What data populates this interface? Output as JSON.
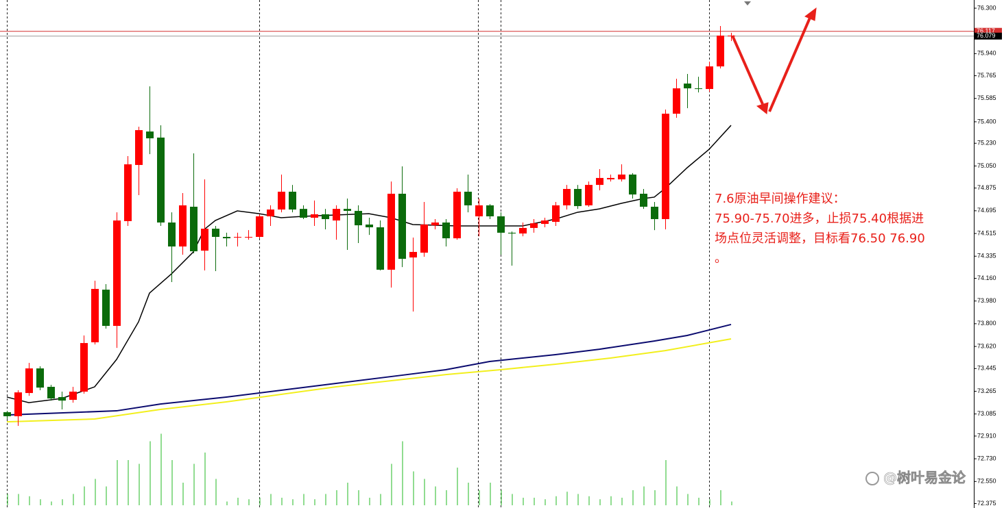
{
  "chart_data": {
    "type": "candlestick",
    "up_color": "#ff0000",
    "down_color": "#0b6b0b",
    "ylim": [
      72.34,
      76.365
    ],
    "yticks": [
      {
        "value": 76.3,
        "label": "76.300"
      },
      {
        "value": 75.94,
        "label": "75.940"
      },
      75.765,
      75.585,
      {
        "value": 75.4,
        "label": "75.400"
      },
      {
        "value": 75.23,
        "label": "75.230"
      },
      {
        "value": 75.05,
        "label": "75.050"
      },
      74.875,
      74.695,
      74.515,
      74.335,
      {
        "value": 74.16,
        "label": "74.160"
      },
      {
        "value": 73.98,
        "label": "73.980"
      },
      {
        "value": 73.8,
        "label": "73.800"
      },
      {
        "value": 73.62,
        "label": "73.620"
      },
      73.445,
      73.265,
      73.085,
      {
        "value": 72.91,
        "label": "72.910"
      },
      {
        "value": 72.73,
        "label": "72.730"
      },
      {
        "value": 72.55,
        "label": "72.550"
      },
      72.375
    ],
    "grid": false,
    "open": [
      73.099,
      73.067,
      73.251,
      73.446,
      73.3,
      73.219,
      73.197,
      73.262,
      73.653,
      74.07,
      73.783,
      74.613,
      75.058,
      75.323,
      75.275,
      74.602,
      74.412,
      74.727,
      74.379,
      74.553,
      74.488,
      74.483,
      74.483,
      74.488,
      74.651,
      74.705,
      74.846,
      74.71,
      74.64,
      74.667,
      74.618,
      74.71,
      74.694,
      74.586,
      74.564,
      74.228,
      74.83,
      74.325,
      74.363,
      74.58,
      74.602,
      74.477,
      74.846,
      74.651,
      74.738,
      74.651,
      74.521,
      74.515,
      74.559,
      74.591,
      74.607,
      74.738,
      74.868,
      74.738,
      74.9,
      74.944,
      74.944,
      74.982,
      74.83,
      74.727,
      74.629,
      75.464,
      75.703,
      75.665,
      75.66,
      75.839,
      76.079
    ],
    "high": [
      73.11,
      73.273,
      73.49,
      73.463,
      73.316,
      73.262,
      73.3,
      73.707,
      74.141,
      74.114,
      74.683,
      75.128,
      75.361,
      75.681,
      75.372,
      74.683,
      74.835,
      75.15,
      74.944,
      74.575,
      74.521,
      74.521,
      74.542,
      74.667,
      74.738,
      74.982,
      74.9,
      74.738,
      74.776,
      74.71,
      74.738,
      74.792,
      74.738,
      74.64,
      74.618,
      74.927,
      75.047,
      74.483,
      74.765,
      74.629,
      74.629,
      74.873,
      74.982,
      74.792,
      74.748,
      74.683,
      74.531,
      74.602,
      74.629,
      74.64,
      74.765,
      74.9,
      74.9,
      74.927,
      75.025,
      74.982,
      75.063,
      74.993,
      74.868,
      74.765,
      75.497,
      75.741,
      75.779,
      75.757,
      75.877,
      76.159,
      76.105
    ],
    "low": [
      73.045,
      72.991,
      73.229,
      73.273,
      73.191,
      73.121,
      73.175,
      73.246,
      73.636,
      73.761,
      73.609,
      74.575,
      74.819,
      75.144,
      74.575,
      74.13,
      74.347,
      74.358,
      74.222,
      74.217,
      74.412,
      74.412,
      74.466,
      74.477,
      74.575,
      74.683,
      74.683,
      74.629,
      74.575,
      74.548,
      74.466,
      74.385,
      74.439,
      74.504,
      74.222,
      74.087,
      74.249,
      73.897,
      74.331,
      74.548,
      74.412,
      74.466,
      74.683,
      74.493,
      74.629,
      74.347,
      74.26,
      74.493,
      74.521,
      74.564,
      74.575,
      74.705,
      74.71,
      74.727,
      74.857,
      74.927,
      74.927,
      74.792,
      74.71,
      74.542,
      74.548,
      75.432,
      75.508,
      75.633,
      75.638,
      75.823,
      76.04
    ],
    "close": [
      73.067,
      73.256,
      73.446,
      73.294,
      73.208,
      73.191,
      73.262,
      73.647,
      74.076,
      73.783,
      74.618,
      75.063,
      75.334,
      75.269,
      74.602,
      74.412,
      74.738,
      74.374,
      74.553,
      74.488,
      74.477,
      74.488,
      74.488,
      74.651,
      74.705,
      74.846,
      74.705,
      74.64,
      74.667,
      74.629,
      74.71,
      74.694,
      74.58,
      74.564,
      74.228,
      74.83,
      74.314,
      74.369,
      74.586,
      74.602,
      74.477,
      74.846,
      74.738,
      74.738,
      74.651,
      74.521,
      74.515,
      74.559,
      74.596,
      74.618,
      74.738,
      74.868,
      74.732,
      74.9,
      74.955,
      74.955,
      74.982,
      74.824,
      74.727,
      74.629,
      75.464,
      75.665,
      75.665,
      75.66,
      75.839,
      76.083,
      76.083
    ],
    "moving_averages": [
      {
        "color": "#000000",
        "x": [
          0,
          2,
          5,
          8,
          10,
          12,
          13,
          15,
          17,
          18,
          19,
          21,
          23,
          25,
          27,
          30,
          33,
          35,
          37,
          41,
          47,
          50,
          52,
          54,
          56,
          58,
          59,
          60,
          62,
          64,
          66
        ],
        "values": [
          73.219,
          73.175,
          73.208,
          73.3,
          73.517,
          73.815,
          74.043,
          74.195,
          74.369,
          74.548,
          74.618,
          74.694,
          74.672,
          74.64,
          74.651,
          74.662,
          74.672,
          74.64,
          74.586,
          74.575,
          74.575,
          74.629,
          74.683,
          74.71,
          74.754,
          74.792,
          74.803,
          74.873,
          75.036,
          75.182,
          75.372
        ]
      },
      {
        "color": "#0a0a6e",
        "x": [
          0,
          10,
          14,
          20,
          30,
          36,
          40,
          44,
          50,
          54,
          59,
          62,
          66
        ],
        "values": [
          73.077,
          73.11,
          73.164,
          73.219,
          73.327,
          73.392,
          73.436,
          73.501,
          73.555,
          73.598,
          73.663,
          73.707,
          73.794
        ]
      },
      {
        "color": "#f2ef1c",
        "x": [
          0,
          8,
          14,
          20,
          30,
          40,
          45,
          50,
          55,
          60,
          66
        ],
        "values": [
          73.023,
          73.045,
          73.121,
          73.181,
          73.3,
          73.397,
          73.436,
          73.479,
          73.528,
          73.587,
          73.68
        ]
      }
    ],
    "volume": {
      "color": "#22b822",
      "values": [
        15,
        15,
        12,
        8,
        5,
        8,
        15,
        25,
        35,
        25,
        60,
        60,
        55,
        85,
        95,
        60,
        30,
        55,
        70,
        35,
        5,
        10,
        8,
        10,
        15,
        10,
        8,
        15,
        8,
        15,
        20,
        30,
        20,
        10,
        15,
        55,
        85,
        45,
        35,
        25,
        20,
        50,
        30,
        20,
        30,
        20,
        15,
        10,
        10,
        8,
        12,
        18,
        15,
        12,
        8,
        12,
        10,
        20,
        25,
        20,
        60,
        25,
        15,
        10,
        8,
        20,
        5
      ]
    },
    "price_lines": [
      {
        "value": 76.117,
        "color": "#d43030"
      },
      {
        "value": 76.079,
        "color": "#9a9a9a"
      }
    ],
    "annotation": {
      "lines": [
        "7.6原油早间操作建议：",
        "75.90-75.70进多，止损75.40根据进",
        "场点位灵活调整，目标看76.50  76.90",
        "。"
      ]
    }
  },
  "watermark": "@树叶易金论"
}
